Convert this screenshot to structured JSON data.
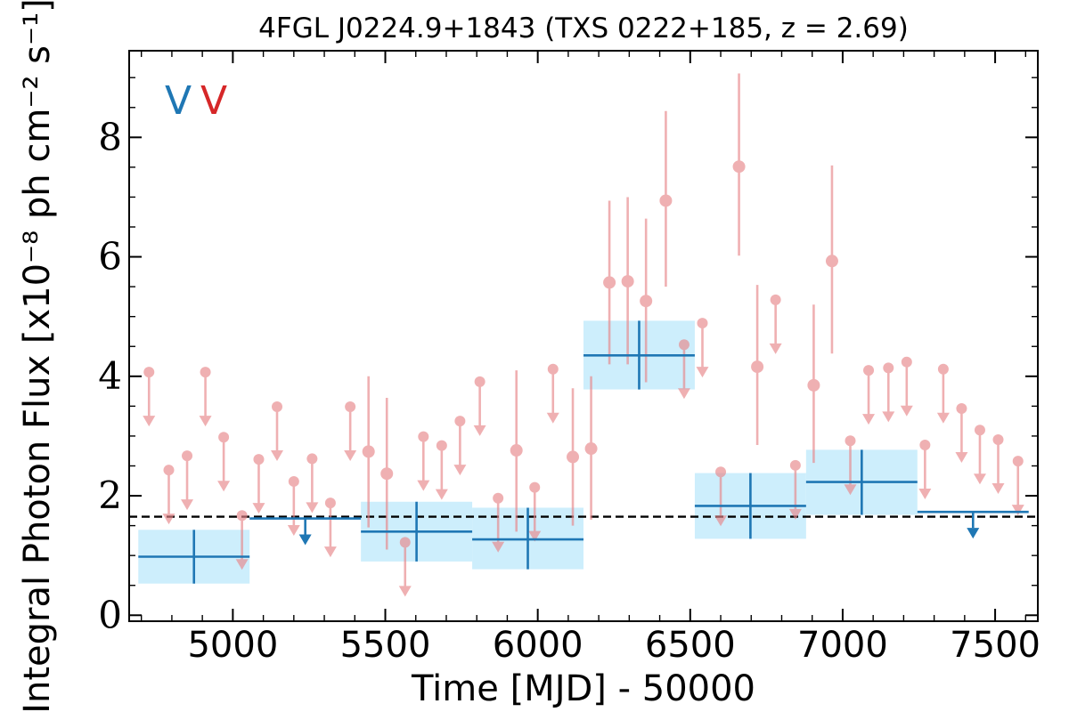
{
  "chart_data": {
    "type": "scatter",
    "title": "4FGL J0224.9+1843 (TXS 0222+185, z = 2.69)",
    "xlabel": "Time [MJD] - 50000",
    "ylabel": "Integral Photon Flux [x10⁻⁸ ph cm⁻² s⁻¹]",
    "xlim": [
      4660,
      7640
    ],
    "ylim": [
      -0.1,
      9.45
    ],
    "xticks": [
      5000,
      5500,
      6000,
      6500,
      7000,
      7500
    ],
    "xtick_labels": [
      "5000",
      "5500",
      "6000",
      "6500",
      "7000",
      "7500"
    ],
    "yticks": [
      0,
      2,
      4,
      6,
      8
    ],
    "ytick_labels": [
      "0",
      "2",
      "4",
      "6",
      "8"
    ],
    "legend": [
      {
        "label": "V",
        "color": "#1f77b4"
      },
      {
        "label": "V",
        "color": "#d62728"
      }
    ],
    "legend_position": "top-left",
    "reference_line": {
      "y": 1.65,
      "style": "dashed",
      "color": "#000000"
    },
    "series": [
      {
        "color": "#1f77b4",
        "band_color": "#cdeefc",
        "points": [
          {
            "x0": 4690,
            "x1": 5055,
            "y": 0.98,
            "ylo": 0.53,
            "yhi": 1.43,
            "ul": false
          },
          {
            "x0": 5055,
            "x1": 5420,
            "y": 1.62,
            "ul": true
          },
          {
            "x0": 5420,
            "x1": 5785,
            "y": 1.4,
            "ylo": 0.9,
            "yhi": 1.9,
            "ul": false
          },
          {
            "x0": 5785,
            "x1": 6150,
            "y": 1.27,
            "ylo": 0.77,
            "yhi": 1.8,
            "ul": false
          },
          {
            "x0": 6150,
            "x1": 6515,
            "y": 4.35,
            "ylo": 3.78,
            "yhi": 4.93,
            "ul": false
          },
          {
            "x0": 6515,
            "x1": 6880,
            "y": 1.83,
            "ylo": 1.28,
            "yhi": 2.38,
            "ul": false
          },
          {
            "x0": 6880,
            "x1": 7245,
            "y": 2.23,
            "ylo": 1.68,
            "yhi": 2.77,
            "ul": false
          },
          {
            "x0": 7245,
            "x1": 7610,
            "y": 1.73,
            "ul": true
          }
        ]
      },
      {
        "color": "#e8868a",
        "points": [
          {
            "x": 4725,
            "y": 4.07,
            "ul": true
          },
          {
            "x": 4790,
            "y": 2.43,
            "ul": true
          },
          {
            "x": 4850,
            "y": 2.67,
            "ul": true
          },
          {
            "x": 4910,
            "y": 4.07,
            "ul": true
          },
          {
            "x": 4970,
            "y": 2.98,
            "ul": true
          },
          {
            "x": 5030,
            "y": 1.67,
            "ul": true
          },
          {
            "x": 5085,
            "y": 2.61,
            "ul": true
          },
          {
            "x": 5145,
            "y": 3.49,
            "ul": true
          },
          {
            "x": 5200,
            "y": 2.24,
            "ul": true
          },
          {
            "x": 5260,
            "y": 2.62,
            "ul": true
          },
          {
            "x": 5320,
            "y": 1.88,
            "ul": true
          },
          {
            "x": 5385,
            "y": 3.49,
            "ul": true
          },
          {
            "x": 5445,
            "y": 2.74,
            "ylo": 1.47,
            "yhi": 4.0,
            "ul": false
          },
          {
            "x": 5505,
            "y": 2.37,
            "ylo": 1.1,
            "yhi": 3.64,
            "ul": false
          },
          {
            "x": 5565,
            "y": 1.22,
            "ul": true
          },
          {
            "x": 5625,
            "y": 2.99,
            "ul": true
          },
          {
            "x": 5685,
            "y": 2.84,
            "ul": true
          },
          {
            "x": 5745,
            "y": 3.25,
            "ul": true
          },
          {
            "x": 5810,
            "y": 3.91,
            "ul": true
          },
          {
            "x": 5870,
            "y": 1.96,
            "ul": true
          },
          {
            "x": 5930,
            "y": 2.76,
            "ylo": 1.4,
            "yhi": 4.1,
            "ul": false
          },
          {
            "x": 5990,
            "y": 2.14,
            "ul": true
          },
          {
            "x": 6050,
            "y": 4.12,
            "ul": true
          },
          {
            "x": 6115,
            "y": 2.65,
            "ylo": 1.5,
            "yhi": 3.8,
            "ul": false
          },
          {
            "x": 6175,
            "y": 2.79,
            "ylo": 1.6,
            "yhi": 4.0,
            "ul": false
          },
          {
            "x": 6235,
            "y": 5.57,
            "ylo": 4.2,
            "yhi": 6.94,
            "ul": false
          },
          {
            "x": 6295,
            "y": 5.59,
            "ylo": 4.2,
            "yhi": 7.0,
            "ul": false
          },
          {
            "x": 6355,
            "y": 5.26,
            "ylo": 3.9,
            "yhi": 6.64,
            "ul": false
          },
          {
            "x": 6420,
            "y": 6.94,
            "ylo": 5.5,
            "yhi": 8.44,
            "ul": false
          },
          {
            "x": 6480,
            "y": 4.53,
            "ul": true
          },
          {
            "x": 6540,
            "y": 4.89,
            "ul": true
          },
          {
            "x": 6600,
            "y": 2.4,
            "ul": true
          },
          {
            "x": 6660,
            "y": 7.51,
            "ylo": 6.02,
            "yhi": 9.07,
            "ul": false
          },
          {
            "x": 6720,
            "y": 4.16,
            "ylo": 2.85,
            "yhi": 5.53,
            "ul": false
          },
          {
            "x": 6780,
            "y": 5.28,
            "ul": true
          },
          {
            "x": 6845,
            "y": 2.51,
            "ul": true
          },
          {
            "x": 6905,
            "y": 3.85,
            "ylo": 2.55,
            "yhi": 5.2,
            "ul": false
          },
          {
            "x": 6965,
            "y": 5.93,
            "ylo": 4.38,
            "yhi": 7.53,
            "ul": false
          },
          {
            "x": 7025,
            "y": 2.92,
            "ul": true
          },
          {
            "x": 7085,
            "y": 4.1,
            "ul": true
          },
          {
            "x": 7150,
            "y": 4.14,
            "ul": true
          },
          {
            "x": 7210,
            "y": 4.24,
            "ul": true
          },
          {
            "x": 7270,
            "y": 2.85,
            "ul": true
          },
          {
            "x": 7330,
            "y": 4.12,
            "ul": true
          },
          {
            "x": 7390,
            "y": 3.46,
            "ul": true
          },
          {
            "x": 7450,
            "y": 3.1,
            "ul": true
          },
          {
            "x": 7510,
            "y": 2.94,
            "ul": true
          },
          {
            "x": 7575,
            "y": 2.58,
            "ul": true
          }
        ]
      }
    ]
  }
}
